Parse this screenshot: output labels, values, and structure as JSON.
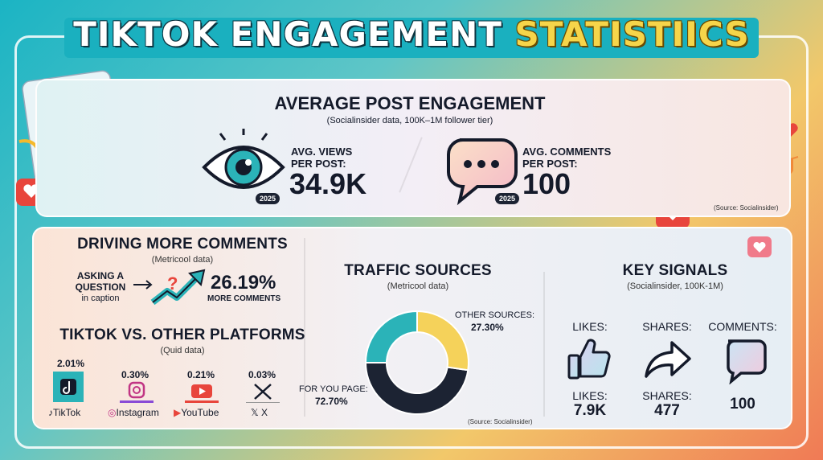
{
  "title": {
    "part1": "TIKTOK ENGAGEMENT",
    "part2": "STATISTIICS"
  },
  "engagement": {
    "title": "AVERAGE POST ENGAGEMENT",
    "subtitle": "(Socialinsider data, 100K–1M follower tier)",
    "views_label": "AVG. VIEWS\nPER POST:",
    "views_value": "34.9K",
    "views_badge": "2025",
    "comments_label": "AVG. COMMENTS\nPER POST:",
    "comments_value": "100",
    "comments_badge": "2025",
    "source": "(Source: Socialinsider)"
  },
  "driving": {
    "title": "DRIVING MORE COMMENTS",
    "subtitle": "(Metricool data)",
    "left_text_1": "ASKING A",
    "left_text_2": "QUESTION",
    "left_text_3": "in caption",
    "value": "26.19%",
    "value_label": "MORE COMMENTS"
  },
  "platforms": {
    "title": "TIKTOK VS. OTHER PLATFORMS",
    "subtitle": "(Quid data)",
    "items": [
      {
        "name": "TikTok",
        "value": "2.01%"
      },
      {
        "name": "Instagram",
        "value": "0.30%"
      },
      {
        "name": "YouTube",
        "value": "0.21%"
      },
      {
        "name": "X",
        "value": "0.03%"
      }
    ]
  },
  "traffic": {
    "title": "TRAFFIC SOURCES",
    "subtitle": "(Metricool data)",
    "other_label": "OTHER SOURCES:",
    "other_value": "27.30%",
    "fyp_label": "FOR YOU PAGE:",
    "fyp_value": "72.70%",
    "source": "(Source: Socialinsider)"
  },
  "signals": {
    "title": "KEY SIGNALS",
    "subtitle": "(Socialinsider, 100K-1M)",
    "likes_top": "LIKES:",
    "shares_top": "SHARES:",
    "comments_top": "COMMENTS:",
    "likes_label": "LIKES:",
    "likes_value": "7.9K",
    "shares_label": "SHARES:",
    "shares_value": "477",
    "comments_value": "100"
  },
  "colors": {
    "teal": "#2bb3b8",
    "yellow": "#f5d25a",
    "navy": "#1c2333",
    "accent_red": "#e8453c"
  },
  "chart_data": [
    {
      "type": "pie",
      "title": "TRAFFIC SOURCES",
      "categories": [
        "FOR YOU PAGE",
        "OTHER SOURCES"
      ],
      "values": [
        72.7,
        27.3
      ],
      "unit": "%"
    },
    {
      "type": "bar",
      "title": "TIKTOK VS. OTHER PLATFORMS",
      "categories": [
        "TikTok",
        "Instagram",
        "YouTube",
        "X"
      ],
      "values": [
        2.01,
        0.3,
        0.21,
        0.03
      ],
      "unit": "%"
    }
  ]
}
